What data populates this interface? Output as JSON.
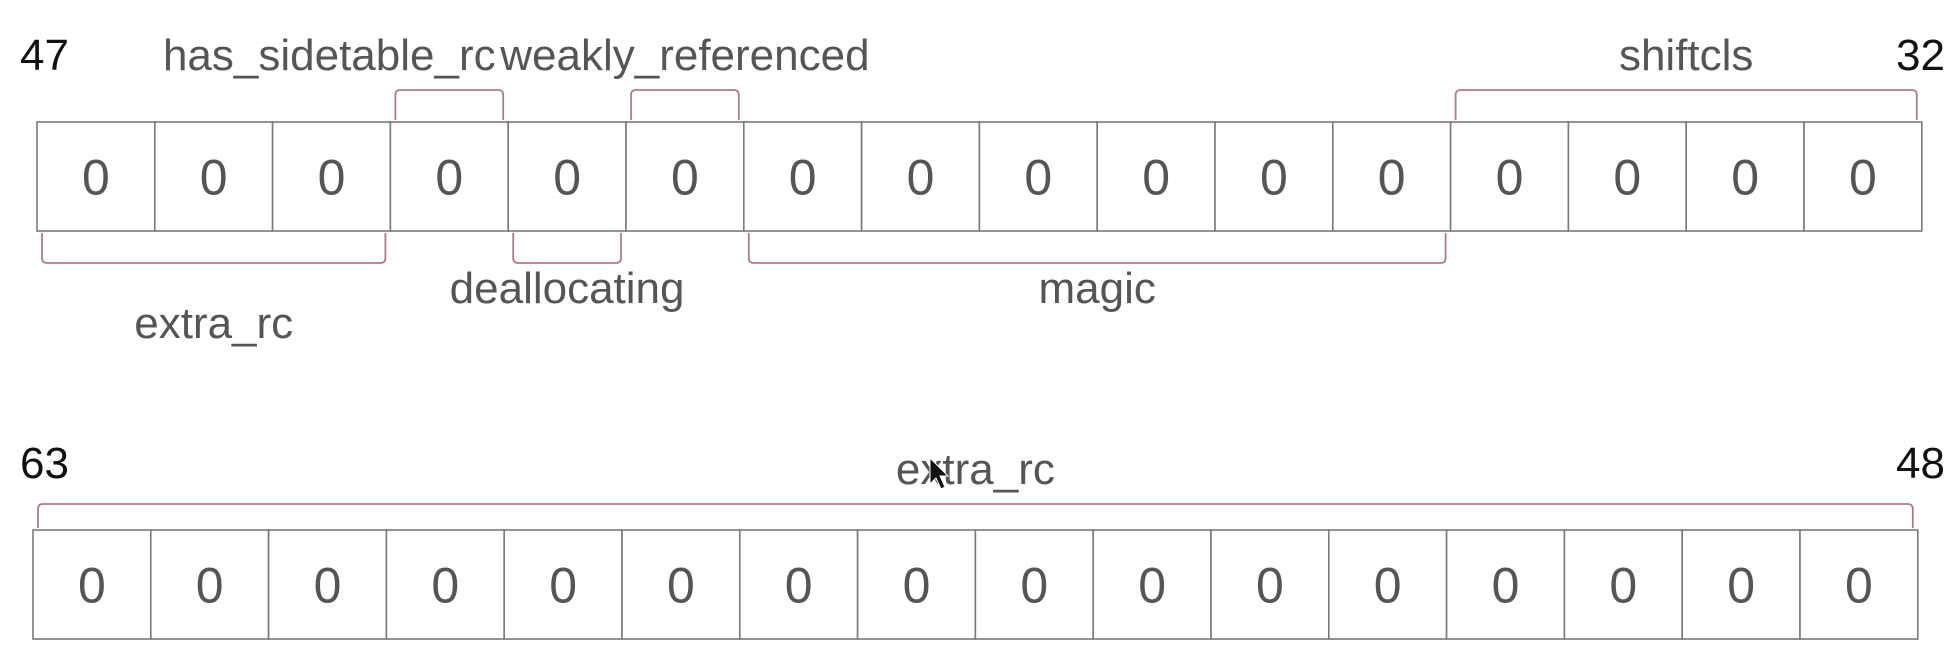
{
  "rows": [
    {
      "left_index": "47",
      "right_index": "32",
      "bits": [
        "0",
        "0",
        "0",
        "0",
        "0",
        "0",
        "0",
        "0",
        "0",
        "0",
        "0",
        "0",
        "0",
        "0",
        "0",
        "0"
      ],
      "fields": [
        {
          "name": "has_sidetable_rc",
          "start": 3,
          "end": 3,
          "side": "top"
        },
        {
          "name": "weakly_referenced",
          "start": 5,
          "end": 5,
          "side": "top"
        },
        {
          "name": "shiftcls",
          "start": 12,
          "end": 15,
          "side": "top"
        },
        {
          "name": "extra_rc",
          "start": 0,
          "end": 2,
          "side": "bottom"
        },
        {
          "name": "deallocating",
          "start": 4,
          "end": 4,
          "side": "bottom"
        },
        {
          "name": "magic",
          "start": 6,
          "end": 11,
          "side": "bottom"
        }
      ]
    },
    {
      "left_index": "63",
      "right_index": "48",
      "bits": [
        "0",
        "0",
        "0",
        "0",
        "0",
        "0",
        "0",
        "0",
        "0",
        "0",
        "0",
        "0",
        "0",
        "0",
        "0",
        "0"
      ],
      "fields": [
        {
          "name": "extra_rc",
          "start": 0,
          "end": 15,
          "side": "top"
        }
      ]
    }
  ]
}
